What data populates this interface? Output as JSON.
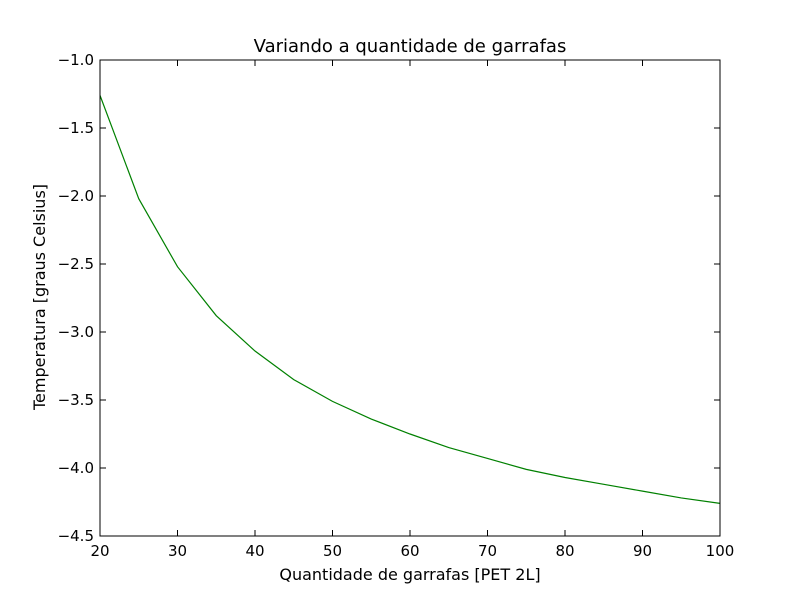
{
  "chart_data": {
    "type": "line",
    "title": "Variando a quantidade de garrafas",
    "xlabel": "Quantidade de garrafas [PET 2L]",
    "ylabel": "Temperatura [graus Celsius]",
    "xlim": [
      20,
      100
    ],
    "ylim": [
      -4.5,
      -1.0
    ],
    "grid": false,
    "x_ticks": [
      "20",
      "30",
      "40",
      "50",
      "60",
      "70",
      "80",
      "90",
      "100"
    ],
    "y_ticks": [
      "−1.0",
      "−1.5",
      "−2.0",
      "−2.5",
      "−3.0",
      "−3.5",
      "−4.0",
      "−4.5"
    ],
    "series": [
      {
        "color": "#008000",
        "x": [
          20,
          25,
          30,
          35,
          40,
          45,
          50,
          55,
          60,
          65,
          70,
          75,
          80,
          85,
          90,
          95,
          100
        ],
        "y": [
          -1.26,
          -2.02,
          -2.52,
          -2.88,
          -3.14,
          -3.35,
          -3.51,
          -3.64,
          -3.75,
          -3.85,
          -3.93,
          -4.01,
          -4.07,
          -4.12,
          -4.17,
          -4.22,
          -4.26
        ]
      }
    ]
  }
}
